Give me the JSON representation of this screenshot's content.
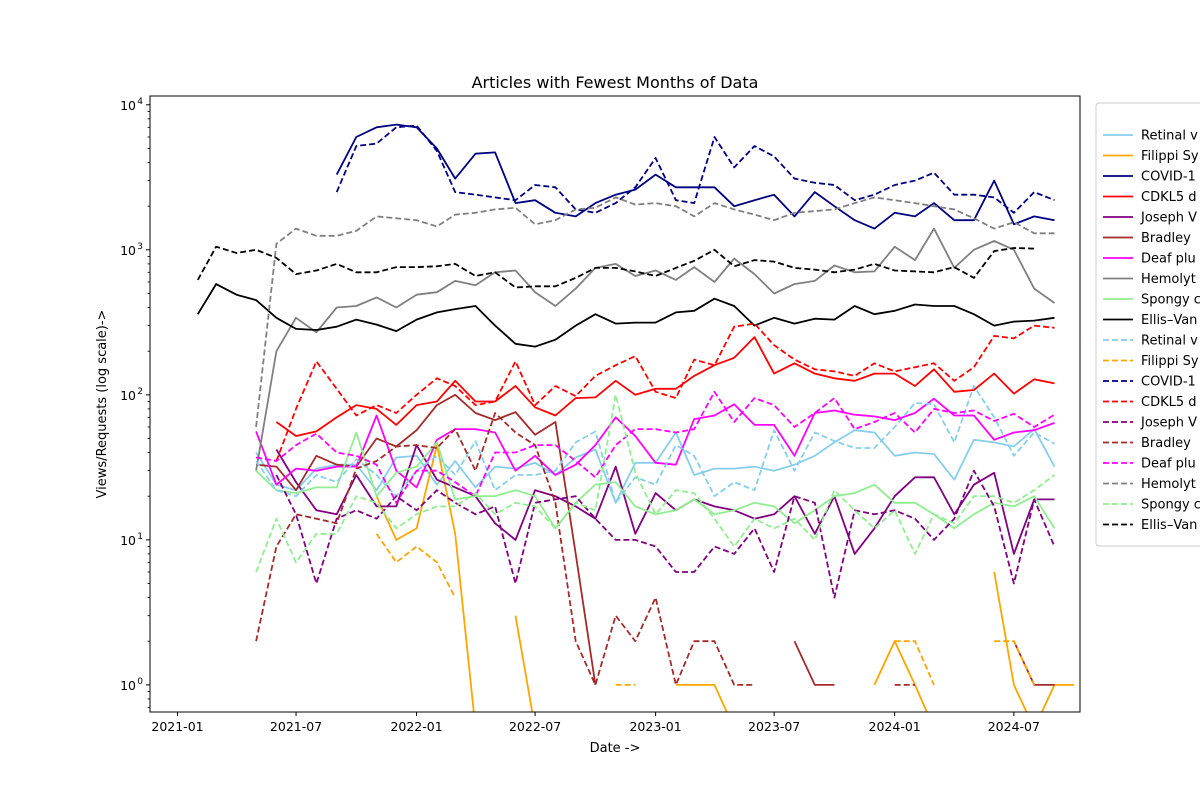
{
  "chart_data": {
    "type": "line",
    "title": "Articles with Fewest Months of Data",
    "xlabel": "Date ->",
    "ylabel": "Views/Requests (log scale)->",
    "y_scale": "log",
    "xlim": [
      "2020-11-20",
      "2024-10-10"
    ],
    "ylim": [
      0.65,
      11500
    ],
    "x_ticks": [
      "2021-01",
      "2021-07",
      "2022-01",
      "2022-07",
      "2023-01",
      "2023-07",
      "2024-01",
      "2024-07"
    ],
    "y_ticks": [
      1,
      10,
      100,
      1000,
      10000
    ],
    "y_tick_labels": [
      [
        "10",
        "0"
      ],
      [
        "10",
        "1"
      ],
      [
        "10",
        "2"
      ],
      [
        "10",
        "3"
      ],
      [
        "10",
        "4"
      ]
    ],
    "grid": false,
    "legend_position": "outside right",
    "series": [
      {
        "name": "Retinal v",
        "color": "#87ceeb",
        "style": "solid",
        "start": "2021-05",
        "values": [
          40,
          24,
          22,
          31,
          33,
          33,
          22,
          37,
          38,
          24,
          35,
          23,
          32,
          31,
          34,
          28,
          37,
          42,
          18,
          34,
          34,
          55,
          28,
          31,
          31,
          32,
          30,
          33,
          38,
          47,
          57,
          55,
          38,
          40,
          39,
          26,
          49,
          47,
          44,
          58,
          32
        ]
      },
      {
        "name": "Filippi Sy",
        "color": "#ffa500",
        "style": "solid",
        "start": "2021-05",
        "values": [
          null,
          null,
          null,
          null,
          null,
          null,
          20,
          10,
          12,
          45,
          11,
          0.5,
          null,
          3,
          0.5,
          null,
          null,
          null,
          0.5,
          null,
          null,
          1,
          1,
          1,
          0.5,
          null,
          null,
          null,
          3,
          null,
          null,
          1,
          2,
          1,
          0.5,
          null,
          null,
          6,
          1,
          0.5,
          1,
          1
        ]
      },
      {
        "name": "COVID-1",
        "color": "#000080",
        "style": "solid",
        "start": "2021-09",
        "values": [
          3300,
          6000,
          7000,
          7300,
          7000,
          5000,
          3100,
          4600,
          4700,
          2100,
          2200,
          1800,
          1700,
          2100,
          2400,
          2600,
          3300,
          2700,
          2700,
          2700,
          2000,
          2200,
          2400,
          1700,
          2500,
          2000,
          1600,
          1400,
          1800,
          1700,
          2100,
          1600,
          1600,
          3000,
          1500,
          1700,
          1600
        ]
      },
      {
        "name": "CDKL5 d",
        "color": "#ff0000",
        "style": "solid",
        "start": "2021-06",
        "values": [
          65,
          52,
          56,
          70,
          85,
          80,
          62,
          85,
          90,
          125,
          90,
          90,
          115,
          82,
          72,
          95,
          96,
          125,
          100,
          110,
          110,
          135,
          160,
          180,
          250,
          140,
          165,
          140,
          130,
          125,
          140,
          140,
          115,
          150,
          105,
          108,
          140,
          102,
          128,
          120
        ]
      },
      {
        "name": "Joseph V",
        "color": "#800080",
        "style": "solid",
        "start": "2021-06",
        "values": [
          42,
          25,
          16,
          15,
          28,
          17,
          17,
          45,
          26,
          23,
          20,
          13,
          10,
          22,
          20,
          17,
          14,
          32,
          11,
          21,
          16,
          19,
          17,
          16,
          14,
          15,
          20,
          11,
          20,
          8,
          12,
          20,
          27,
          27,
          15,
          24,
          29,
          8,
          19,
          19
        ]
      },
      {
        "name": "Bradley",
        "color": "#a52a2a",
        "style": "solid",
        "start": "2021-05",
        "values": [
          33,
          32,
          22,
          38,
          33,
          32,
          50,
          44,
          57,
          85,
          100,
          75,
          67,
          76,
          53,
          65,
          8,
          1,
          null,
          null,
          null,
          null,
          null,
          null,
          null,
          null,
          null,
          2,
          1,
          1,
          null,
          null,
          null,
          null,
          null,
          null,
          null,
          null,
          2,
          1,
          1
        ]
      },
      {
        "name": "Deaf plu",
        "color": "#ff00ff",
        "style": "solid",
        "start": "2021-05",
        "values": [
          56,
          24,
          31,
          30,
          32,
          32,
          72,
          30,
          23,
          49,
          58,
          58,
          55,
          30,
          38,
          28,
          33,
          45,
          70,
          52,
          34,
          33,
          68,
          72,
          86,
          62,
          62,
          38,
          75,
          78,
          73,
          71,
          67,
          75,
          94,
          72,
          72,
          49,
          55,
          57,
          64
        ]
      },
      {
        "name": "Hemolyt",
        "color": "#808080",
        "style": "solid",
        "start": "2021-05",
        "values": [
          30,
          200,
          340,
          270,
          400,
          410,
          470,
          400,
          490,
          510,
          610,
          570,
          700,
          720,
          510,
          410,
          540,
          750,
          800,
          660,
          720,
          620,
          760,
          600,
          870,
          680,
          500,
          580,
          610,
          780,
          700,
          710,
          1050,
          850,
          1400,
          750,
          1000,
          1150,
          1000,
          540,
          430
        ]
      },
      {
        "name": "Spongy c",
        "color": "#90ee90",
        "style": "solid",
        "start": "2021-05",
        "values": [
          30,
          22,
          21,
          23,
          23,
          55,
          20,
          29,
          32,
          47,
          19,
          20,
          20,
          22,
          20,
          12,
          18,
          24,
          25,
          17,
          15,
          16,
          19,
          15,
          16,
          18,
          17,
          13,
          16,
          20,
          21,
          24,
          18,
          18,
          15,
          12,
          15,
          18,
          17,
          20,
          12
        ]
      },
      {
        "name": "Ellis–Van",
        "color": "#000000",
        "style": "solid",
        "start": "2021-02",
        "values": [
          360,
          580,
          490,
          450,
          340,
          285,
          280,
          295,
          330,
          305,
          275,
          330,
          370,
          390,
          410,
          300,
          225,
          215,
          240,
          300,
          360,
          310,
          315,
          315,
          370,
          380,
          460,
          410,
          300,
          340,
          310,
          335,
          330,
          410,
          360,
          380,
          420,
          410,
          410,
          360,
          300,
          320,
          325,
          340
        ]
      },
      {
        "name": "Retinal v",
        "color": "#87ceeb",
        "style": "dashed",
        "start": "2021-05",
        "values": [
          35,
          22,
          20,
          28,
          25,
          36,
          28,
          20,
          30,
          38,
          28,
          48,
          22,
          28,
          28,
          30,
          47,
          56,
          18,
          27,
          24,
          45,
          38,
          20,
          25,
          22,
          57,
          30,
          55,
          48,
          43,
          43,
          60,
          88,
          86,
          47,
          115,
          70,
          38,
          55,
          46
        ]
      },
      {
        "name": "Filippi Sy",
        "color": "#ffa500",
        "style": "dashed",
        "start": "2021-05",
        "values": [
          null,
          null,
          null,
          null,
          null,
          null,
          11,
          7,
          9,
          7,
          4,
          null,
          null,
          null,
          null,
          null,
          null,
          null,
          1,
          1,
          null,
          null,
          null,
          null,
          null,
          null,
          null,
          null,
          null,
          null,
          null,
          null,
          2,
          2,
          1,
          null,
          null,
          2,
          2,
          1,
          null,
          null
        ]
      },
      {
        "name": "COVID-1",
        "color": "#000080",
        "style": "dashed",
        "start": "2021-09",
        "values": [
          2500,
          5200,
          5400,
          7000,
          7200,
          4800,
          2500,
          2400,
          2300,
          2200,
          2800,
          2700,
          1900,
          1800,
          2100,
          2700,
          4300,
          2200,
          2100,
          6000,
          3700,
          5200,
          4400,
          3100,
          2900,
          2800,
          2200,
          2400,
          2800,
          3000,
          3400,
          2400,
          2400,
          2300,
          1800,
          2500,
          2200
        ]
      },
      {
        "name": "CDKL5 d",
        "color": "#ff0000",
        "style": "dashed",
        "start": "2021-06",
        "values": [
          35,
          80,
          170,
          110,
          72,
          85,
          75,
          100,
          130,
          115,
          85,
          90,
          170,
          85,
          115,
          98,
          135,
          160,
          185,
          105,
          95,
          175,
          160,
          295,
          310,
          220,
          175,
          150,
          145,
          135,
          165,
          145,
          155,
          165,
          125,
          155,
          255,
          245,
          300,
          290
        ]
      },
      {
        "name": "Joseph V",
        "color": "#800080",
        "style": "dashed",
        "start": "2021-06",
        "values": [
          28,
          15,
          5,
          14,
          16,
          14,
          20,
          16,
          22,
          18,
          15,
          17,
          5,
          18,
          19,
          20,
          14,
          10,
          10,
          9,
          6,
          6,
          9,
          8,
          12,
          6,
          20,
          18,
          4,
          16,
          15,
          16,
          14,
          10,
          14,
          30,
          17,
          5,
          19,
          9
        ]
      },
      {
        "name": "Bradley",
        "color": "#a52a2a",
        "style": "dashed",
        "start": "2021-05",
        "values": [
          2,
          9,
          15,
          14,
          13,
          31,
          35,
          44,
          45,
          43,
          58,
          30,
          75,
          55,
          45,
          18,
          2,
          1,
          3,
          2,
          4,
          1,
          2,
          2,
          1,
          1,
          null,
          null,
          null,
          null,
          null,
          null,
          1,
          1,
          null,
          null,
          null,
          null,
          null,
          null,
          1
        ]
      },
      {
        "name": "Deaf plu",
        "color": "#ff00ff",
        "style": "dashed",
        "start": "2021-05",
        "values": [
          37,
          35,
          45,
          54,
          40,
          38,
          33,
          18,
          30,
          30,
          25,
          20,
          40,
          40,
          45,
          45,
          35,
          27,
          45,
          58,
          58,
          55,
          58,
          105,
          65,
          95,
          85,
          60,
          75,
          95,
          58,
          65,
          75,
          55,
          80,
          75,
          78,
          66,
          74,
          60,
          73
        ]
      },
      {
        "name": "Hemolyt",
        "color": "#808080",
        "style": "dashed",
        "start": "2021-05",
        "values": [
          60,
          1100,
          1400,
          1250,
          1250,
          1350,
          1700,
          1650,
          1600,
          1450,
          1750,
          1800,
          1900,
          1950,
          1500,
          1600,
          1900,
          1950,
          2300,
          2050,
          2100,
          2000,
          1700,
          2100,
          1900,
          1750,
          1600,
          1800,
          1850,
          1900,
          2100,
          2300,
          2200,
          2100,
          2000,
          1900,
          1650,
          1400,
          1550,
          1300,
          1300
        ]
      },
      {
        "name": "Spongy c",
        "color": "#90ee90",
        "style": "dashed",
        "start": "2021-05",
        "values": [
          6,
          14,
          7,
          11,
          11,
          20,
          18,
          12,
          15,
          17,
          17,
          21,
          15,
          18,
          17,
          12,
          18,
          16,
          100,
          29,
          15,
          22,
          21,
          14,
          9,
          14,
          12,
          14,
          10,
          22,
          16,
          12,
          16,
          8,
          15,
          13,
          20,
          20,
          18,
          22,
          28
        ]
      },
      {
        "name": "Ellis–Van",
        "color": "#000000",
        "style": "dashed",
        "start": "2021-02",
        "values": [
          620,
          1050,
          950,
          1000,
          880,
          680,
          720,
          800,
          700,
          700,
          760,
          760,
          770,
          800,
          660,
          700,
          550,
          560,
          560,
          640,
          750,
          750,
          710,
          660,
          750,
          840,
          1000,
          770,
          850,
          830,
          750,
          730,
          700,
          730,
          800,
          720,
          710,
          700,
          760,
          640,
          980,
          1030,
          1020
        ]
      }
    ]
  }
}
